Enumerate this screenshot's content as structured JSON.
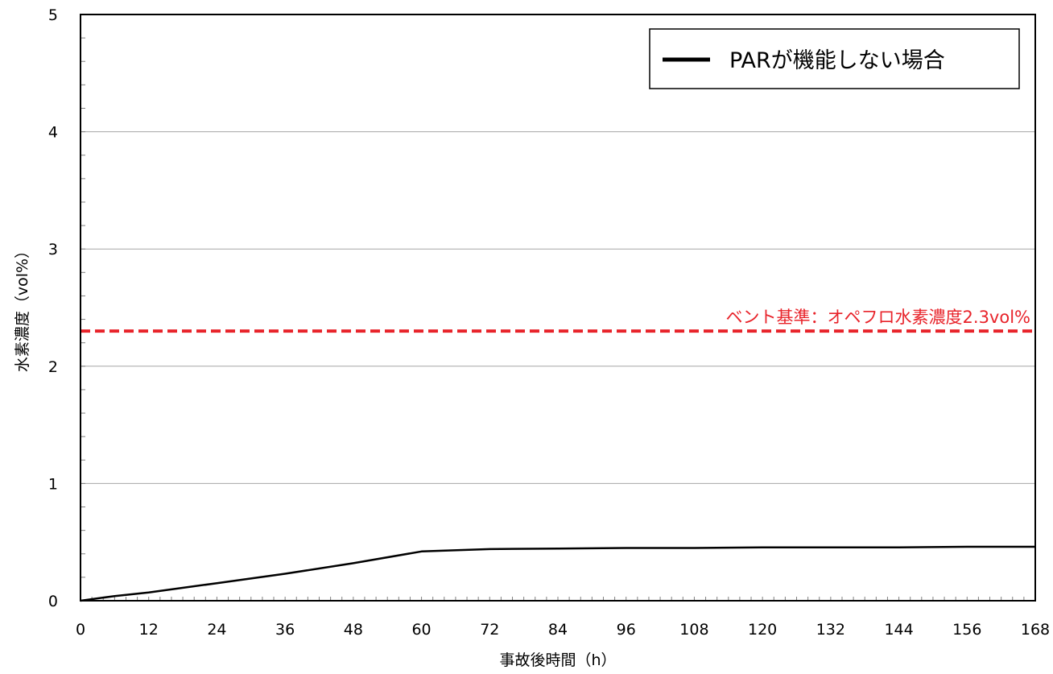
{
  "chart_data": {
    "type": "line",
    "xlabel": "事故後時間（h）",
    "ylabel": "水素濃度（vol%）",
    "xlim": [
      0,
      168
    ],
    "ylim": [
      0,
      5
    ],
    "x_ticks": [
      0,
      12,
      24,
      36,
      48,
      60,
      72,
      84,
      96,
      108,
      120,
      132,
      144,
      156,
      168
    ],
    "y_ticks": [
      0,
      1,
      2,
      3,
      4,
      5
    ],
    "grid": "horizontal",
    "legend_position": "top-right",
    "series": [
      {
        "name": "PARが機能しない場合",
        "color": "#000000",
        "x": [
          0,
          6,
          12,
          24,
          36,
          48,
          60,
          72,
          84,
          96,
          108,
          120,
          132,
          144,
          156,
          168
        ],
        "y": [
          0,
          0.04,
          0.07,
          0.15,
          0.23,
          0.32,
          0.42,
          0.44,
          0.445,
          0.45,
          0.45,
          0.455,
          0.455,
          0.455,
          0.46,
          0.46
        ]
      }
    ],
    "reference_lines": [
      {
        "label": "ベント基準：オペフロ水素濃度2.3vol%",
        "y": 2.3,
        "color": "#e8232a",
        "style": "dashed"
      }
    ]
  }
}
